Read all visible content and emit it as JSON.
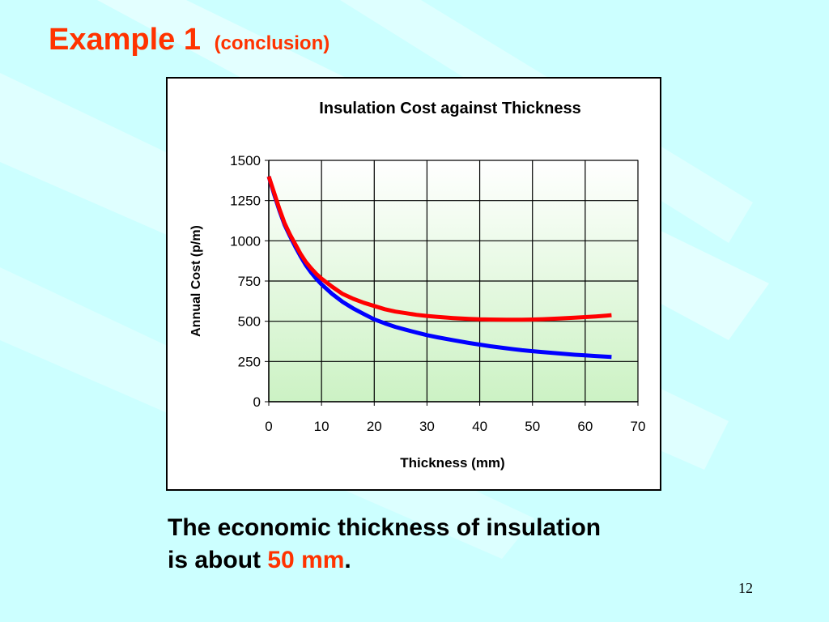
{
  "slide": {
    "title_main": "Example 1",
    "title_sub": "(conclusion)",
    "conclusion_line1": "The economic thickness of insulation",
    "conclusion_line2_prefix": "is about",
    "conclusion_highlight": "50 mm",
    "conclusion_suffix": ".",
    "page_number": "12"
  },
  "colors": {
    "background": "#ccffff",
    "title": "#ff3300",
    "series_red": "#ff0000",
    "series_blue": "#0000ff"
  },
  "chart_data": {
    "type": "line",
    "title": "Insulation Cost against Thickness",
    "xlabel": "Thickness (mm)",
    "ylabel": "Annual Cost (p/m)",
    "xlim": [
      0,
      70
    ],
    "ylim": [
      0,
      1500
    ],
    "xticks": [
      "0",
      "10",
      "20",
      "30",
      "40",
      "50",
      "60",
      "70"
    ],
    "yticks": [
      "0",
      "250",
      "500",
      "750",
      "1000",
      "1250",
      "1500"
    ],
    "grid": true,
    "legend": "none",
    "series": [
      {
        "color": "#ff0000",
        "x": [
          0,
          1,
          2,
          3,
          4,
          5,
          6,
          7,
          8,
          9,
          10,
          12,
          14,
          16,
          18,
          20,
          22,
          24,
          26,
          28,
          30,
          32,
          35,
          38,
          40,
          42,
          45,
          48,
          50,
          52,
          55,
          58,
          60,
          62,
          64,
          65
        ],
        "y": [
          1400,
          1300,
          1200,
          1110,
          1040,
          980,
          920,
          870,
          830,
          795,
          765,
          715,
          670,
          640,
          615,
          595,
          575,
          560,
          550,
          540,
          533,
          527,
          520,
          515,
          512,
          511,
          510,
          510,
          511,
          513,
          517,
          522,
          526,
          530,
          535,
          538
        ]
      },
      {
        "color": "#0000ff",
        "x": [
          0,
          1,
          2,
          3,
          4,
          5,
          6,
          7,
          8,
          9,
          10,
          12,
          14,
          16,
          18,
          20,
          22,
          24,
          26,
          28,
          30,
          32,
          35,
          38,
          40,
          42,
          45,
          48,
          50,
          52,
          55,
          58,
          60,
          62,
          64,
          65
        ],
        "y": [
          1400,
          1290,
          1190,
          1100,
          1030,
          965,
          905,
          850,
          805,
          765,
          730,
          670,
          620,
          580,
          545,
          512,
          487,
          465,
          447,
          430,
          414,
          400,
          382,
          365,
          355,
          345,
          332,
          320,
          314,
          308,
          300,
          292,
          288,
          284,
          280,
          278
        ]
      }
    ]
  }
}
